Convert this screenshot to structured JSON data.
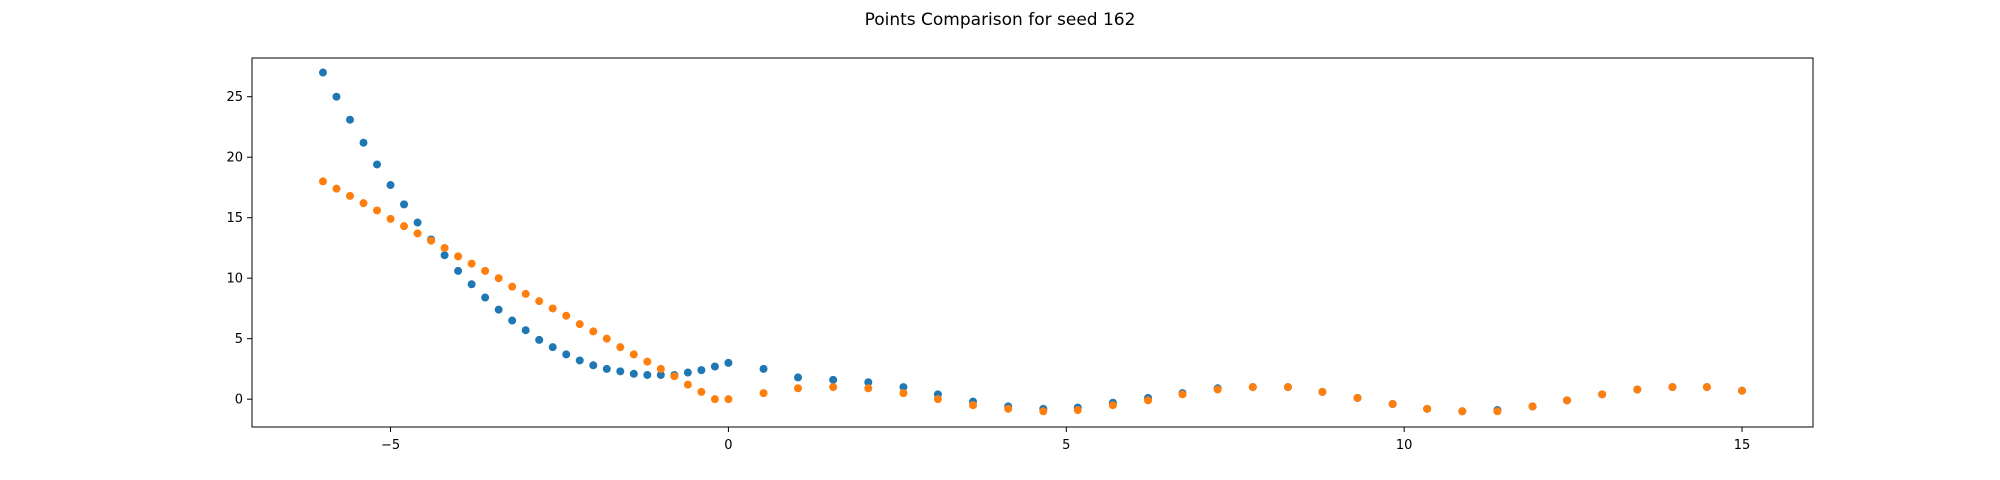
{
  "chart_data": {
    "type": "scatter",
    "title": "Points Comparison for seed 162",
    "xlabel": "",
    "ylabel": "",
    "xlim": [
      -7.05,
      16.05
    ],
    "ylim": [
      -2.3,
      28.2
    ],
    "xticks": [
      -5,
      0,
      5,
      10,
      15
    ],
    "yticks": [
      0,
      5,
      10,
      15,
      20,
      25
    ],
    "grid": false,
    "legend": "none",
    "series": [
      {
        "color": "#1f77b4",
        "x": [
          -6.0,
          -5.8,
          -5.6,
          -5.4,
          -5.2,
          -5.0,
          -4.8,
          -4.6,
          -4.4,
          -4.2,
          -4.0,
          -3.8,
          -3.6,
          -3.4,
          -3.2,
          -3.0,
          -2.8,
          -2.6,
          -2.4,
          -2.2,
          -2.0,
          -1.8,
          -1.6,
          -1.4,
          -1.2,
          -1.0,
          -0.8,
          -0.6,
          -0.4,
          -0.2,
          0.0,
          0.52,
          1.03,
          1.55,
          2.07,
          2.59,
          3.1,
          3.62,
          4.14,
          4.66,
          5.17,
          5.69,
          6.21,
          6.72,
          7.24,
          7.76,
          8.28,
          8.79,
          9.31,
          9.83,
          10.34,
          10.86,
          11.38,
          11.9,
          12.41,
          12.93,
          13.45,
          13.97,
          14.48,
          15.0
        ],
        "y": [
          27.0,
          25.0,
          23.1,
          21.2,
          19.4,
          17.7,
          16.1,
          14.6,
          13.2,
          11.9,
          10.6,
          9.5,
          8.4,
          7.4,
          6.5,
          5.7,
          4.9,
          4.3,
          3.7,
          3.2,
          2.8,
          2.5,
          2.3,
          2.1,
          2.0,
          2.0,
          2.0,
          2.2,
          2.4,
          2.7,
          3.0,
          2.5,
          1.8,
          1.6,
          1.4,
          1.0,
          0.4,
          -0.2,
          -0.6,
          -0.8,
          -0.7,
          -0.3,
          0.1,
          0.5,
          0.9,
          1.0,
          1.0,
          0.6,
          0.1,
          -0.4,
          -0.8,
          -1.0,
          -0.9,
          -0.6,
          -0.1,
          0.4,
          0.8,
          1.0,
          1.0,
          0.7
        ]
      },
      {
        "color": "#ff7f0e",
        "x": [
          -6.0,
          -5.8,
          -5.6,
          -5.4,
          -5.2,
          -5.0,
          -4.8,
          -4.6,
          -4.4,
          -4.2,
          -4.0,
          -3.8,
          -3.6,
          -3.4,
          -3.2,
          -3.0,
          -2.8,
          -2.6,
          -2.4,
          -2.2,
          -2.0,
          -1.8,
          -1.6,
          -1.4,
          -1.2,
          -1.0,
          -0.8,
          -0.6,
          -0.4,
          -0.2,
          0.0,
          0.52,
          1.03,
          1.55,
          2.07,
          2.59,
          3.1,
          3.62,
          4.14,
          4.66,
          5.17,
          5.69,
          6.21,
          6.72,
          7.24,
          7.76,
          8.28,
          8.79,
          9.31,
          9.83,
          10.34,
          10.86,
          11.38,
          11.9,
          12.41,
          12.93,
          13.45,
          13.97,
          14.48,
          15.0
        ],
        "y": [
          18.0,
          17.4,
          16.8,
          16.2,
          15.6,
          14.9,
          14.3,
          13.7,
          13.1,
          12.5,
          11.8,
          11.2,
          10.6,
          10.0,
          9.3,
          8.7,
          8.1,
          7.5,
          6.9,
          6.2,
          5.6,
          5.0,
          4.3,
          3.7,
          3.1,
          2.5,
          1.9,
          1.2,
          0.6,
          0.0,
          0.0,
          0.5,
          0.9,
          1.0,
          0.9,
          0.5,
          0.0,
          -0.5,
          -0.8,
          -1.0,
          -0.9,
          -0.5,
          -0.1,
          0.4,
          0.8,
          1.0,
          1.0,
          0.6,
          0.1,
          -0.4,
          -0.8,
          -1.0,
          -1.0,
          -0.6,
          -0.1,
          0.4,
          0.8,
          1.0,
          1.0,
          0.7
        ]
      }
    ]
  }
}
